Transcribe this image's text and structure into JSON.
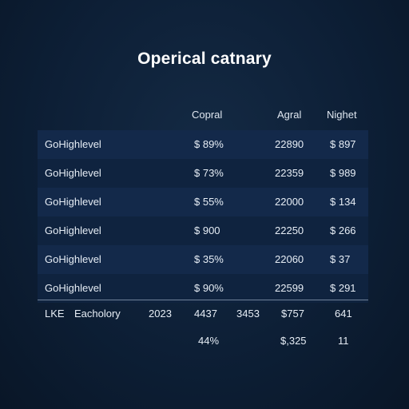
{
  "title": "Operical catnary",
  "columns": [
    "Copral",
    "Agral",
    "Nighet"
  ],
  "rows": [
    {
      "name": "GoHighlevel",
      "copral": "$ 89%",
      "agral": "22890",
      "nighet": "$ 897"
    },
    {
      "name": "GoHighlevel",
      "copral": "$ 73%",
      "agral": "22359",
      "nighet": "$ 989"
    },
    {
      "name": "GoHighlevel",
      "copral": "$ 55%",
      "agral": "22000",
      "nighet": "$ 134"
    },
    {
      "name": "GoHighlevel",
      "copral": "$ 900",
      "agral": "22250",
      "nighet": "$ 266"
    },
    {
      "name": "GoHighlevel",
      "copral": "$ 35%",
      "agral": "22060",
      "nighet": "$ 37"
    },
    {
      "name": "GoHighlevel",
      "copral": "$ 90%",
      "agral": "22599",
      "nighet": "$ 291"
    }
  ],
  "summary": {
    "row1": [
      "LKE",
      "Eacholory",
      "2023",
      "4437",
      "3453",
      "$757",
      "641"
    ],
    "row2": [
      "44%",
      "$,325",
      "11"
    ]
  },
  "colors": {
    "background": "#0d1f36",
    "band_a": "#13294a",
    "band_b": "#0f233f",
    "text": "#e6edf5"
  }
}
